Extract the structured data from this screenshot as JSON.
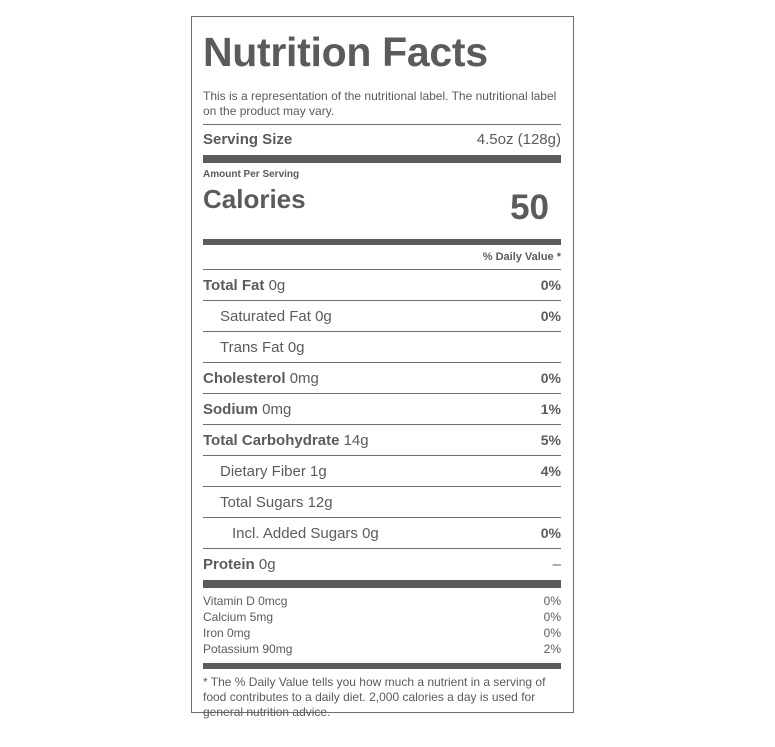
{
  "title": "Nutrition Facts",
  "description": "This is a representation of the nutritional label. The nutritional label on the product may vary.",
  "serving_size": {
    "label": "Serving Size",
    "value": "4.5oz (128g)"
  },
  "amount_per_serving": "Amount Per Serving",
  "calories": {
    "label": "Calories",
    "value": "50"
  },
  "daily_value_header": "% Daily Value *",
  "nutrients": [
    {
      "name": "Total Fat",
      "amount": "0g",
      "dv": "0%"
    },
    {
      "name": "Saturated Fat",
      "amount": "0g",
      "dv": "0%"
    },
    {
      "name": "Trans Fat",
      "amount": "0g",
      "dv": ""
    },
    {
      "name": "Cholesterol",
      "amount": "0mg",
      "dv": "0%"
    },
    {
      "name": "Sodium",
      "amount": "0mg",
      "dv": "1%"
    },
    {
      "name": "Total Carbohydrate",
      "amount": "14g",
      "dv": "5%"
    },
    {
      "name": "Dietary Fiber",
      "amount": "1g",
      "dv": "4%"
    },
    {
      "name": "Total Sugars",
      "amount": "12g",
      "dv": ""
    },
    {
      "name": "Incl. Added Sugars",
      "amount": "0g",
      "dv": "0%"
    },
    {
      "name": "Protein",
      "amount": "0g",
      "dv": "–"
    }
  ],
  "vitamins": [
    {
      "name": "Vitamin D 0mcg",
      "dv": "0%"
    },
    {
      "name": "Calcium 5mg",
      "dv": "0%"
    },
    {
      "name": "Iron 0mg",
      "dv": "0%"
    },
    {
      "name": "Potassium 90mg",
      "dv": "2%"
    }
  ],
  "footnote": "* The % Daily Value tells you how much a nutrient in a serving of food contributes to a daily diet. 2,000 calories a day is used for general nutrition advice."
}
